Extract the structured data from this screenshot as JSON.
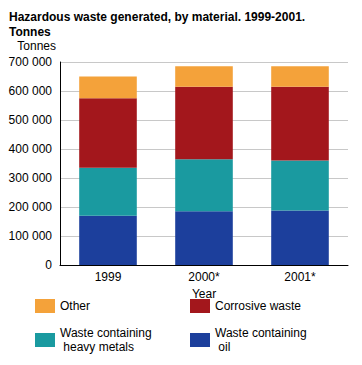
{
  "chart_data": {
    "type": "bar",
    "stacked": true,
    "title": "Hazardous waste generated, by material. 1999-2001. Tonnes",
    "x_label": "Year",
    "y_label": "Tonnes",
    "categories": [
      "1999",
      "2000*",
      "2001*"
    ],
    "series": [
      {
        "name": "Waste containing oil",
        "color": "#1c3f9c",
        "values": [
          170000,
          185000,
          188000
        ]
      },
      {
        "name": "Waste containing heavy metals",
        "color": "#1a9aa0",
        "values": [
          165000,
          180000,
          172000
        ]
      },
      {
        "name": "Corrosive waste",
        "color": "#a3171c",
        "values": [
          240000,
          250000,
          255000
        ]
      },
      {
        "name": "Other",
        "color": "#f4a23a",
        "values": [
          75000,
          70000,
          70000
        ]
      }
    ],
    "ylim": [
      0,
      700000
    ],
    "yticks": [
      0,
      {
        "value": 100000,
        "label": "100 000"
      },
      {
        "value": 200000,
        "label": "200 000"
      },
      {
        "value": 300000,
        "label": "300 000"
      },
      {
        "value": 400000,
        "label": "400 000"
      },
      {
        "value": 500000,
        "label": "500 000"
      },
      {
        "value": 600000,
        "label": "600 000"
      },
      {
        "value": 700000,
        "label": "700 000"
      }
    ],
    "grid": true,
    "legend": "bottom"
  }
}
